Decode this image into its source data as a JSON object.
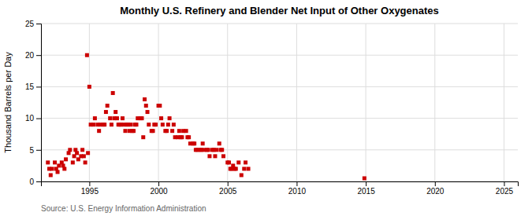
{
  "chart_data": {
    "type": "scatter",
    "title": "Monthly U.S. Refinery and Blender Net Input of Other Oxygenates",
    "ylabel": "Thousand Barrels per Day",
    "annotations": [
      "Source: U.S. Energy Information Administration"
    ],
    "color": "#cc0000",
    "marker": "square",
    "grid": true,
    "xlim": [
      1991.5,
      2026
    ],
    "ylim": [
      0,
      25
    ],
    "xticks": [
      1995,
      2000,
      2005,
      2010,
      2015,
      2020,
      2025
    ],
    "yticks": [
      0,
      5,
      10,
      15,
      20,
      25
    ],
    "x": [
      1992.0,
      1992.1,
      1992.2,
      1992.3,
      1992.5,
      1992.6,
      1992.7,
      1992.8,
      1993.0,
      1993.1,
      1993.2,
      1993.3,
      1993.5,
      1993.6,
      1993.8,
      1993.9,
      1994.0,
      1994.1,
      1994.2,
      1994.4,
      1994.5,
      1994.6,
      1994.7,
      1994.9,
      1994.83,
      1995.0,
      1995.1,
      1995.3,
      1995.4,
      1995.6,
      1995.7,
      1995.8,
      1996.0,
      1996.1,
      1996.2,
      1996.3,
      1996.5,
      1996.6,
      1996.7,
      1996.8,
      1996.9,
      1997.0,
      1997.1,
      1997.2,
      1997.3,
      1997.4,
      1997.5,
      1997.6,
      1997.7,
      1997.8,
      1997.9,
      1998.0,
      1998.1,
      1998.2,
      1998.3,
      1998.4,
      1998.5,
      1998.7,
      1998.8,
      1998.9,
      1999.0,
      1999.1,
      1999.2,
      1999.3,
      1999.5,
      1999.6,
      1999.7,
      1999.8,
      2000.0,
      2000.1,
      2000.2,
      2000.3,
      2000.5,
      2000.6,
      2000.7,
      2000.8,
      2001.0,
      2001.1,
      2001.2,
      2001.4,
      2001.5,
      2001.6,
      2001.7,
      2001.8,
      2002.0,
      2002.1,
      2002.2,
      2002.3,
      2002.5,
      2002.6,
      2002.7,
      2002.8,
      2003.0,
      2003.1,
      2003.2,
      2003.3,
      2003.5,
      2003.6,
      2003.7,
      2003.9,
      2004.0,
      2004.1,
      2004.2,
      2004.4,
      2004.5,
      2004.6,
      2004.7,
      2005.0,
      2005.1,
      2005.2,
      2005.3,
      2005.4,
      2005.5,
      2005.6,
      2005.8,
      2006.0,
      2006.2,
      2006.3,
      2006.5,
      2014.9
    ],
    "values": [
      3.0,
      2.0,
      1.0,
      2.0,
      3.0,
      2.0,
      1.5,
      2.5,
      3.0,
      2.5,
      2.0,
      3.5,
      4.5,
      5.0,
      3.0,
      4.0,
      5.0,
      4.5,
      3.5,
      4.0,
      5.0,
      4.0,
      3.0,
      4.5,
      20.0,
      15.0,
      9.0,
      9.0,
      10.0,
      9.0,
      8.0,
      9.0,
      9.0,
      9.0,
      11.0,
      12.0,
      10.0,
      9.0,
      14.0,
      10.0,
      11.0,
      10.0,
      9.0,
      9.0,
      9.0,
      10.0,
      9.0,
      8.0,
      9.0,
      9.0,
      8.0,
      9.0,
      8.0,
      8.0,
      9.0,
      9.0,
      10.0,
      10.0,
      10.0,
      7.0,
      13.0,
      12.0,
      11.0,
      9.0,
      8.0,
      8.0,
      9.0,
      9.0,
      12.0,
      12.0,
      10.0,
      9.0,
      8.0,
      8.0,
      9.0,
      10.0,
      8.0,
      9.0,
      7.0,
      7.0,
      8.0,
      7.0,
      7.0,
      8.0,
      8.0,
      7.0,
      7.0,
      6.0,
      6.0,
      6.0,
      5.0,
      5.0,
      5.0,
      5.0,
      6.0,
      5.0,
      5.0,
      5.0,
      4.0,
      5.0,
      5.0,
      4.0,
      5.0,
      6.0,
      5.0,
      5.0,
      4.0,
      3.0,
      3.0,
      2.0,
      2.0,
      2.5,
      2.0,
      2.0,
      3.0,
      1.0,
      2.0,
      3.0,
      2.0,
      0.5
    ]
  }
}
